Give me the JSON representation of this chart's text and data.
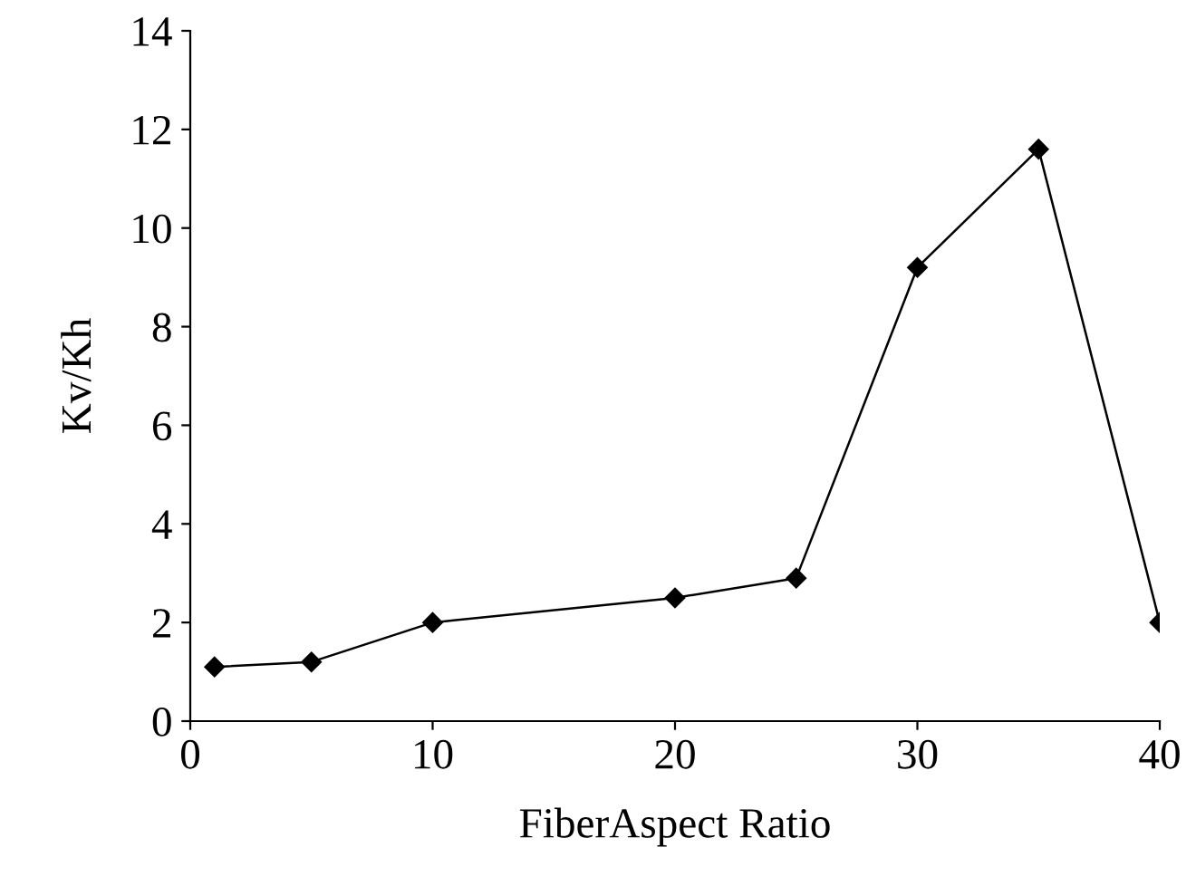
{
  "chart_data": {
    "type": "line",
    "xlabel": "FiberAspect Ratio",
    "ylabel": "Kv/Kh",
    "x": [
      1,
      5,
      10,
      20,
      25,
      30,
      35,
      40
    ],
    "series": [
      {
        "color": "#000000",
        "values": [
          1.1,
          1.2,
          2.0,
          2.5,
          2.9,
          9.2,
          11.6,
          2.0
        ]
      }
    ],
    "xlim": [
      0,
      40
    ],
    "xticks": [
      0,
      10,
      20,
      30,
      40
    ],
    "ylim": [
      0,
      14
    ],
    "yticks": [
      0,
      2,
      4,
      6,
      8,
      10,
      12,
      14
    ],
    "grid": false,
    "legend": false,
    "marker": "diamond",
    "line_style": "solid"
  }
}
